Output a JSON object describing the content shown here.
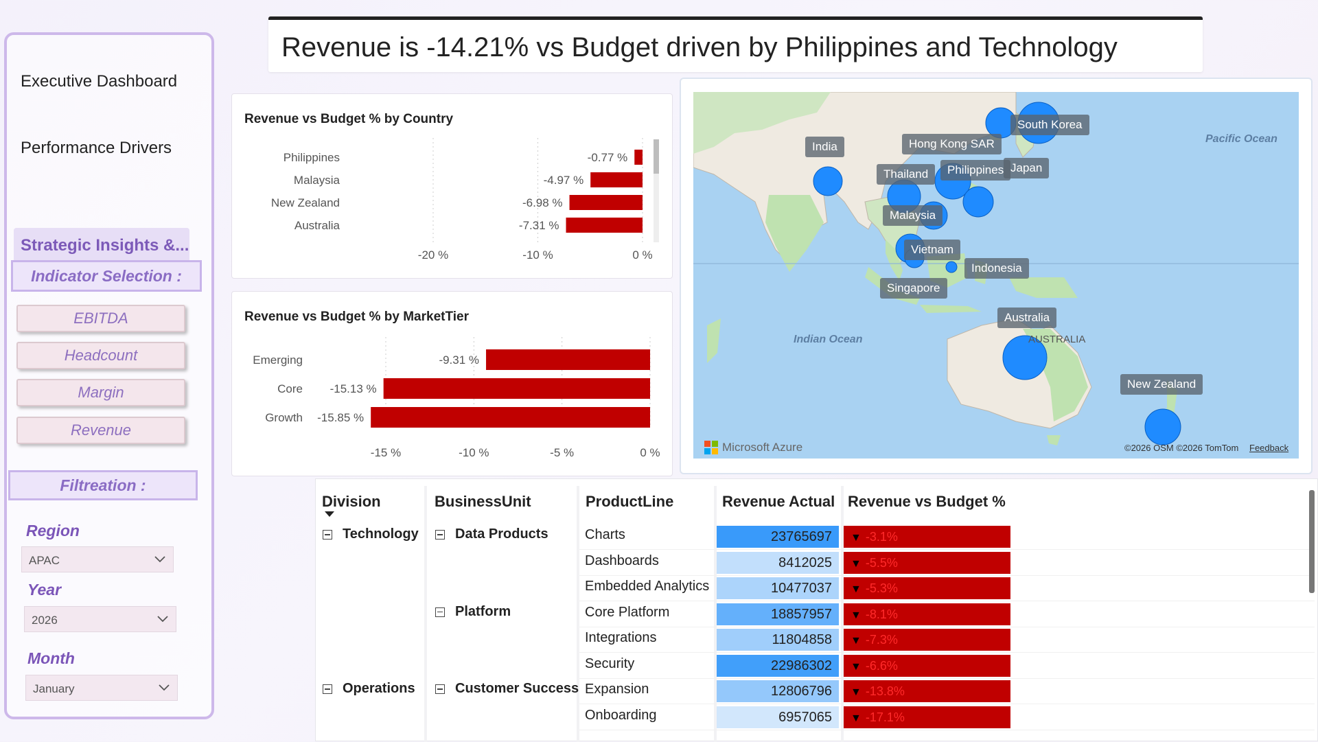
{
  "title": "Revenue is -14.21% vs Budget driven by Philippines and Technology",
  "sidebar": {
    "nav": [
      "Executive Dashboard",
      "Performance Drivers",
      "Strategic Insights &..."
    ],
    "indicator_title": "Indicator Selection :",
    "indicators": [
      "EBITDA",
      "Headcount",
      "Margin",
      "Revenue"
    ],
    "filter_title": "Filtreation :",
    "filters": [
      {
        "label": "Region",
        "value": "APAC"
      },
      {
        "label": "Year",
        "value": "2026"
      },
      {
        "label": "Month",
        "value": "January"
      }
    ]
  },
  "country_chart": {
    "title": "Revenue vs Budget % by Country",
    "rows": [
      {
        "name": "Philippines",
        "label": "-0.77 %",
        "value": -0.77
      },
      {
        "name": "Malaysia",
        "label": "-4.97 %",
        "value": -4.97
      },
      {
        "name": "New Zealand",
        "label": "-6.98 %",
        "value": -6.98
      },
      {
        "name": "Australia",
        "label": "-7.31 %",
        "value": -7.31
      }
    ],
    "ticks": [
      "-20 %",
      "-10 %",
      "0 %"
    ],
    "xlim": [
      -22,
      0
    ]
  },
  "tier_chart": {
    "title": "Revenue vs Budget % by MarketTier",
    "rows": [
      {
        "name": "Emerging",
        "label": "-9.31 %",
        "value": -9.31
      },
      {
        "name": "Core",
        "label": "-15.13 %",
        "value": -15.13
      },
      {
        "name": "Growth",
        "label": "-15.85 %",
        "value": -15.85
      }
    ],
    "ticks": [
      "-15 %",
      "-10 %",
      "-5 %",
      "0 %"
    ],
    "xlim": [
      -16.5,
      0
    ]
  },
  "map": {
    "labels": [
      "South Korea",
      "Hong Kong SAR",
      "India",
      "Thailand",
      "Philippines",
      "Japan",
      "Malaysia",
      "Vietnam",
      "Indonesia",
      "Singapore",
      "Australia",
      "New Zealand"
    ],
    "ocean_labels": [
      "Pacific Ocean",
      "Indian Ocean",
      "AUSTRALIA"
    ],
    "brand": "Microsoft Azure",
    "attribution": "©2026 OSM  ©2026 TomTom",
    "feedback": "Feedback"
  },
  "matrix": {
    "headers": [
      "Division",
      "BusinessUnit",
      "ProductLine",
      "Revenue Actual",
      "Revenue vs Budget %"
    ],
    "rows": [
      {
        "division": "Technology",
        "unit": "Data Products",
        "product": "Charts",
        "actual": "23765697",
        "intensity": 0.95,
        "variance": "-3.1%"
      },
      {
        "division": "",
        "unit": "",
        "product": "Dashboards",
        "actual": "8412025",
        "intensity": 0.15,
        "variance": "-5.5%"
      },
      {
        "division": "",
        "unit": "",
        "product": "Embedded Analytics",
        "actual": "10477037",
        "intensity": 0.28,
        "variance": "-5.3%"
      },
      {
        "division": "",
        "unit": "Platform",
        "product": "Core Platform",
        "actual": "18857957",
        "intensity": 0.7,
        "variance": "-8.1%"
      },
      {
        "division": "",
        "unit": "",
        "product": "Integrations",
        "actual": "11804858",
        "intensity": 0.35,
        "variance": "-7.3%"
      },
      {
        "division": "",
        "unit": "",
        "product": "Security",
        "actual": "22986302",
        "intensity": 0.9,
        "variance": "-6.6%"
      },
      {
        "division": "Operations",
        "unit": "Customer Success",
        "product": "Expansion",
        "actual": "12806796",
        "intensity": 0.42,
        "variance": "-13.8%"
      },
      {
        "division": "",
        "unit": "",
        "product": "Onboarding",
        "actual": "6957065",
        "intensity": 0.06,
        "variance": "-17.1%"
      }
    ]
  }
}
